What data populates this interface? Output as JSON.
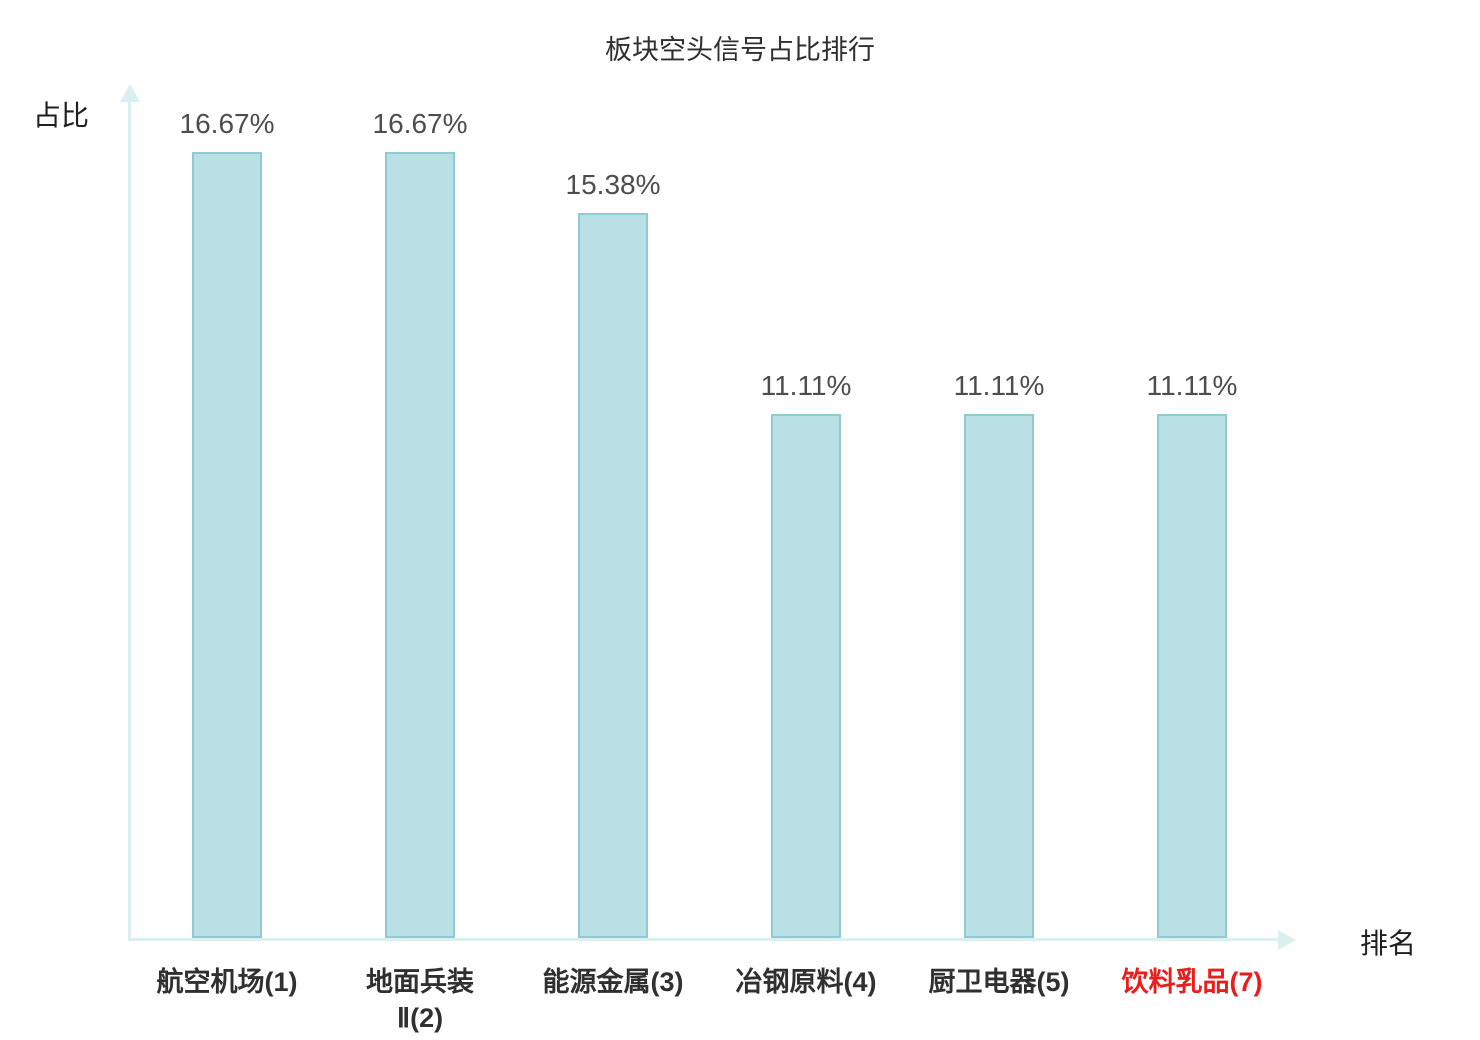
{
  "title": "板块空头信号占比排行",
  "axes": {
    "y_label": "占比",
    "x_label": "排名"
  },
  "chart_data": {
    "type": "bar",
    "title": "板块空头信号占比排行",
    "xlabel": "排名",
    "ylabel": "占比",
    "categories": [
      "航空机场(1)",
      "地面兵装Ⅱ(2)",
      "能源金属(3)",
      "冶钢原料(4)",
      "厨卫电器(5)",
      "饮料乳品(7)"
    ],
    "category_lines": [
      [
        "航空机场(1)"
      ],
      [
        "地面兵装",
        "Ⅱ(2)"
      ],
      [
        "能源金属(3)"
      ],
      [
        "冶钢原料(4)"
      ],
      [
        "厨卫电器(5)"
      ],
      [
        "饮料乳品(7)"
      ]
    ],
    "values": [
      16.67,
      16.67,
      15.38,
      11.11,
      11.11,
      11.11
    ],
    "value_labels": [
      "16.67%",
      "16.67%",
      "15.38%",
      "11.11%",
      "11.11%",
      "11.11%"
    ],
    "highlighted_index": 5,
    "ylim": [
      0,
      18
    ],
    "grid": false,
    "legend": "none",
    "bar_color": "#b9e0e5",
    "bar_border_color": "#8fcbd3",
    "axis_color": "#daf0f0",
    "label_color": "#303030",
    "value_color": "#4d4d4d",
    "highlight_color": "#ea1c1c"
  }
}
